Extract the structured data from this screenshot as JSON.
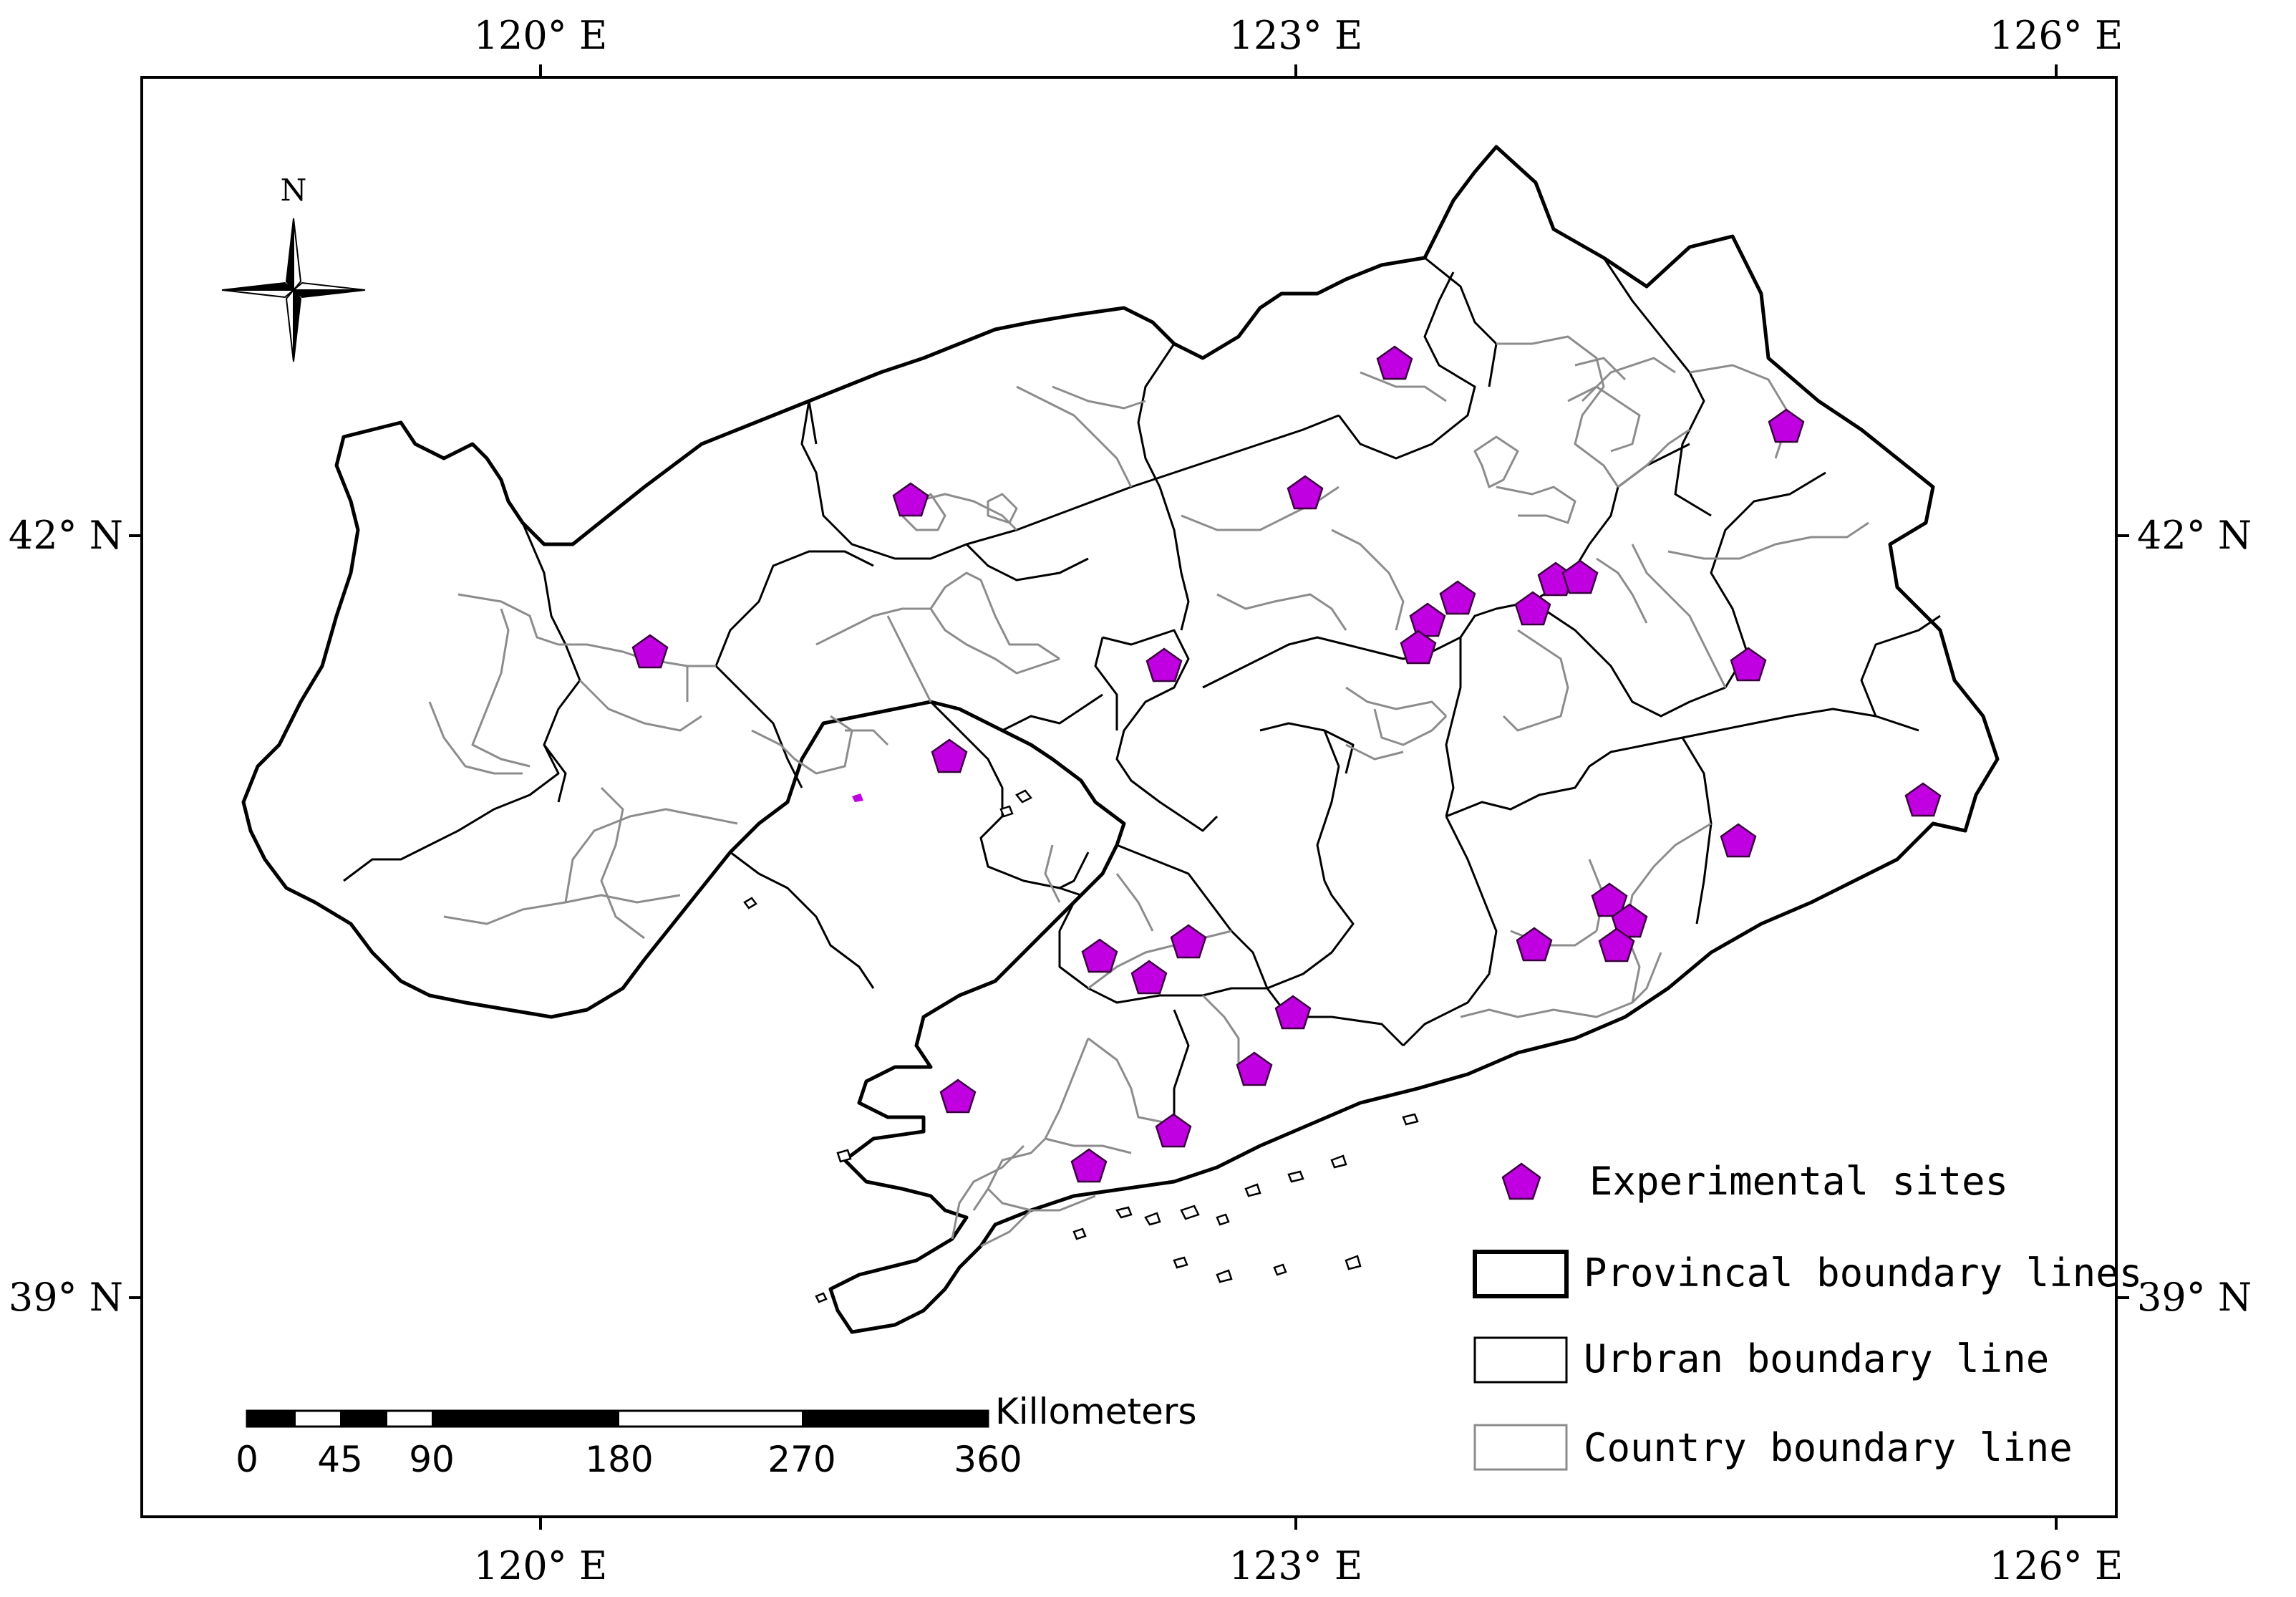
{
  "axes": {
    "top_ticks": [
      "120° E",
      "123° E",
      "126° E"
    ],
    "bottom_ticks": [
      "120° E",
      "123° E",
      "126° E"
    ],
    "left_ticks": [
      "42° N",
      "39° N"
    ],
    "right_ticks": [
      "42° N",
      "39° N"
    ]
  },
  "north_arrow": {
    "label": "N",
    "icon": "compass-rose-icon"
  },
  "legend": {
    "items": [
      {
        "label": "Experimental sites",
        "symbol": "pentagon",
        "color": "#c000e0"
      },
      {
        "label": "Provincal boundary lines",
        "symbol": "thick-black-box",
        "color": "#000000"
      },
      {
        "label": "Urbran boundary line",
        "symbol": "thin-black-box",
        "color": "#000000"
      },
      {
        "label": "Country boundary line",
        "symbol": "gray-box",
        "color": "#8c8c8c"
      }
    ]
  },
  "scale_bar": {
    "unit": "Killometers",
    "labels": [
      "0",
      "45",
      "90",
      "180",
      "270",
      "360"
    ]
  },
  "colors": {
    "site_fill": "#c000e0",
    "provincial": "#000000",
    "urban": "#000000",
    "country": "#8c8c8c"
  }
}
